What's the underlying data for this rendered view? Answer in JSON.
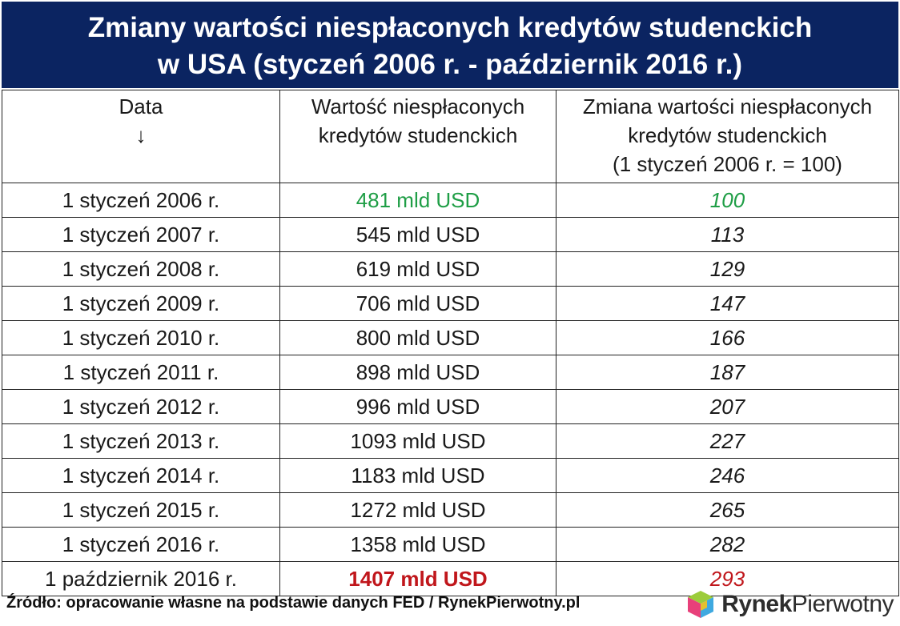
{
  "chart_data": {
    "type": "table",
    "title_line1": "Zmiany wartości niespłaconych kredytów studenckich",
    "title_line2": "w USA (styczeń 2006 r. - październik 2016 r.)",
    "columns": [
      {
        "line1": "Data",
        "line2": "↓",
        "line3": ""
      },
      {
        "line1": "Wartość niespłaconych",
        "line2": "kredytów studenckich",
        "line3": ""
      },
      {
        "line1": "Zmiana wartości niespłaconych",
        "line2": "kredytów studenckich",
        "line3": "(1 styczeń 2006 r. = 100)"
      }
    ],
    "rows": [
      {
        "date": "1 styczeń 2006 r.",
        "value": "481 mld USD",
        "index": "100",
        "highlight": "green"
      },
      {
        "date": "1 styczeń 2007 r.",
        "value": "545 mld USD",
        "index": "113",
        "highlight": ""
      },
      {
        "date": "1 styczeń 2008 r.",
        "value": "619 mld USD",
        "index": "129",
        "highlight": ""
      },
      {
        "date": "1 styczeń 2009 r.",
        "value": "706 mld USD",
        "index": "147",
        "highlight": ""
      },
      {
        "date": "1 styczeń 2010 r.",
        "value": "800 mld USD",
        "index": "166",
        "highlight": ""
      },
      {
        "date": "1 styczeń 2011 r.",
        "value": "898 mld USD",
        "index": "187",
        "highlight": ""
      },
      {
        "date": "1 styczeń 2012 r.",
        "value": "996 mld USD",
        "index": "207",
        "highlight": ""
      },
      {
        "date": "1 styczeń 2013 r.",
        "value": "1093 mld USD",
        "index": "227",
        "highlight": ""
      },
      {
        "date": "1 styczeń 2014 r.",
        "value": "1183 mld USD",
        "index": "246",
        "highlight": ""
      },
      {
        "date": "1 styczeń 2015 r.",
        "value": "1272 mld USD",
        "index": "265",
        "highlight": ""
      },
      {
        "date": "1 styczeń 2016 r.",
        "value": "1358 mld USD",
        "index": "282",
        "highlight": ""
      },
      {
        "date": "1 październik 2016 r.",
        "value": "1407 mld USD",
        "index": "293",
        "highlight": "red"
      }
    ]
  },
  "colors": {
    "title_bg": "#0b2461",
    "first_row": "#1f9e46",
    "last_row": "#c0161b"
  },
  "footer": {
    "source": "Źródło: opracowanie własne na podstawie danych FED / RynekPierwotny.pl",
    "brand_part1": "Rynek",
    "brand_part2": "Pierwotny",
    "logo_icon": "cube-logo-icon"
  }
}
